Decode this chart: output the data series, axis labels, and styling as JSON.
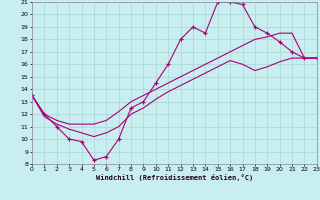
{
  "xlabel": "Windchill (Refroidissement éolien,°C)",
  "bg_color": "#c8eef0",
  "grid_color": "#b0d8d8",
  "line_color": "#aa0077",
  "xmin": 0,
  "xmax": 23,
  "ymin": 8,
  "ymax": 21,
  "yticks": [
    8,
    9,
    10,
    11,
    12,
    13,
    14,
    15,
    16,
    17,
    18,
    19,
    20,
    21
  ],
  "xticks": [
    0,
    1,
    2,
    3,
    4,
    5,
    6,
    7,
    8,
    9,
    10,
    11,
    12,
    13,
    14,
    15,
    16,
    17,
    18,
    19,
    20,
    21,
    22,
    23
  ],
  "line1_x": [
    0,
    1,
    2,
    3,
    4,
    5,
    6,
    7,
    8,
    9,
    10,
    11,
    12,
    13,
    14,
    15,
    16,
    17,
    18,
    19,
    20,
    21,
    22,
    23
  ],
  "line1_y": [
    13.5,
    12.0,
    11.0,
    10.0,
    9.8,
    8.3,
    8.6,
    10.0,
    12.5,
    13.0,
    14.5,
    16.0,
    18.0,
    19.0,
    18.5,
    21.0,
    21.0,
    20.8,
    19.0,
    18.5,
    17.8,
    17.0,
    16.5,
    16.5
  ],
  "line2_x": [
    0,
    1,
    2,
    3,
    4,
    5,
    6,
    7,
    8,
    9,
    10,
    11,
    12,
    13,
    14,
    15,
    16,
    17,
    18,
    19,
    20,
    21,
    22,
    23
  ],
  "line2_y": [
    13.5,
    12.0,
    11.5,
    11.2,
    11.2,
    11.2,
    11.5,
    12.2,
    13.0,
    13.5,
    14.0,
    14.5,
    15.0,
    15.5,
    16.0,
    16.5,
    17.0,
    17.5,
    18.0,
    18.2,
    18.5,
    18.5,
    16.5,
    16.5
  ],
  "line3_x": [
    0,
    1,
    2,
    3,
    4,
    5,
    6,
    7,
    8,
    9,
    10,
    11,
    12,
    13,
    14,
    15,
    16,
    17,
    18,
    19,
    20,
    21,
    22,
    23
  ],
  "line3_y": [
    13.5,
    11.8,
    11.2,
    10.8,
    10.5,
    10.2,
    10.5,
    11.0,
    12.0,
    12.5,
    13.2,
    13.8,
    14.3,
    14.8,
    15.3,
    15.8,
    16.3,
    16.0,
    15.5,
    15.8,
    16.2,
    16.5,
    16.5,
    16.5
  ]
}
